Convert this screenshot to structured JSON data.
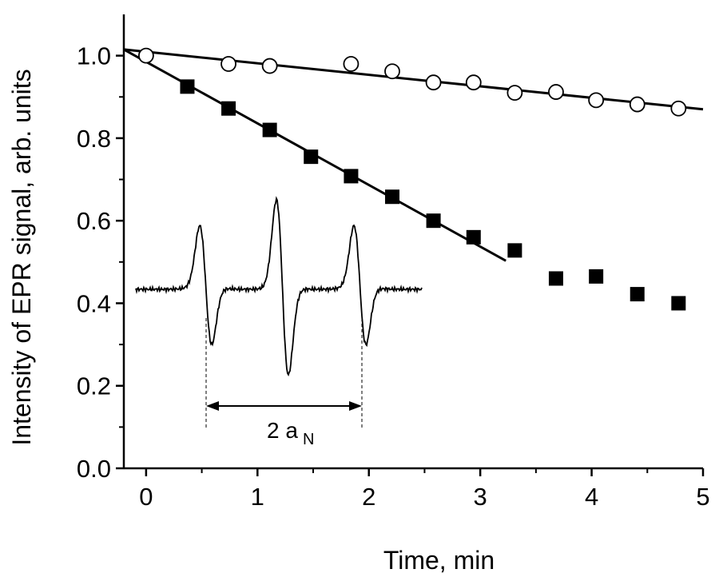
{
  "chart_data": {
    "type": "scatter",
    "title": "",
    "xlabel": "Time, min",
    "ylabel": "Intensity of EPR signal, arb. units",
    "xlim": [
      -0.2,
      5.0
    ],
    "ylim": [
      0.0,
      1.1
    ],
    "xticks": [
      0,
      1,
      2,
      3,
      4,
      5
    ],
    "yticks": [
      0.0,
      0.2,
      0.4,
      0.6,
      0.8,
      1.0
    ],
    "xtick_labels": [
      "0",
      "1",
      "2",
      "3",
      "4",
      "5"
    ],
    "ytick_labels": [
      "0.0",
      "0.2",
      "0.4",
      "0.6",
      "0.8",
      "1.0"
    ],
    "grid": false,
    "series": [
      {
        "marker": "open-circle",
        "color": "#000000",
        "x": [
          0.0,
          0.74,
          1.11,
          1.84,
          2.21,
          2.58,
          2.94,
          3.31,
          3.68,
          4.04,
          4.41,
          4.78
        ],
        "y": [
          1.0,
          0.98,
          0.975,
          0.98,
          0.962,
          0.935,
          0.935,
          0.91,
          0.912,
          0.892,
          0.882,
          0.872
        ],
        "fit": {
          "x": [
            -0.2,
            5.0
          ],
          "y": [
            1.015,
            0.87
          ]
        }
      },
      {
        "marker": "filled-square",
        "color": "#000000",
        "x": [
          0.37,
          0.74,
          1.11,
          1.48,
          1.84,
          2.21,
          2.58,
          2.94,
          3.31,
          3.68,
          4.04,
          4.41,
          4.78
        ],
        "y": [
          0.925,
          0.872,
          0.82,
          0.755,
          0.708,
          0.658,
          0.6,
          0.56,
          0.528,
          0.46,
          0.465,
          0.422,
          0.4
        ],
        "fit": {
          "x": [
            -0.2,
            3.23
          ],
          "y": [
            1.015,
            0.503
          ]
        }
      }
    ],
    "inset": {
      "annotation": "2 a",
      "annotation_sub": "N"
    }
  }
}
